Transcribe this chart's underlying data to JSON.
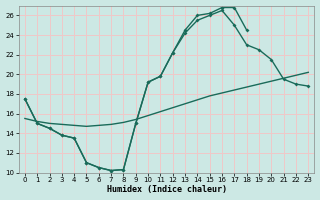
{
  "xlabel": "Humidex (Indice chaleur)",
  "bg_color": "#cce8e4",
  "grid_color": "#f0c8c8",
  "line_color": "#1a6b5a",
  "xlim": [
    -0.5,
    23.5
  ],
  "ylim": [
    10,
    27
  ],
  "yticks": [
    10,
    12,
    14,
    16,
    18,
    20,
    22,
    24,
    26
  ],
  "xticks": [
    0,
    1,
    2,
    3,
    4,
    5,
    6,
    7,
    8,
    9,
    10,
    11,
    12,
    13,
    14,
    15,
    16,
    17,
    18,
    19,
    20,
    21,
    22,
    23
  ],
  "curve_dip_x": [
    0,
    1,
    2,
    3,
    4,
    5,
    6,
    7,
    8,
    9,
    10,
    11,
    12,
    13,
    14,
    15,
    16,
    17,
    18
  ],
  "curve_dip_y": [
    17.5,
    15.0,
    14.5,
    13.8,
    13.5,
    11.0,
    10.5,
    10.2,
    10.3,
    15.0,
    19.2,
    19.8,
    22.2,
    24.5,
    26.0,
    26.2,
    26.8,
    26.8,
    24.5
  ],
  "curve_full_x": [
    0,
    1,
    2,
    3,
    4,
    5,
    6,
    7,
    8,
    9,
    10,
    11,
    12,
    13,
    14,
    15,
    16,
    17,
    18,
    19,
    20,
    21,
    22,
    23
  ],
  "curve_full_y": [
    17.5,
    15.0,
    14.5,
    13.8,
    13.5,
    11.0,
    10.5,
    10.2,
    10.3,
    15.0,
    19.2,
    19.8,
    22.2,
    24.2,
    25.5,
    26.0,
    26.5,
    25.0,
    23.0,
    22.5,
    21.5,
    19.5,
    19.0,
    18.8
  ],
  "curve_trend_x": [
    0,
    1,
    2,
    3,
    4,
    5,
    6,
    7,
    8,
    9,
    10,
    11,
    12,
    13,
    14,
    15,
    16,
    17,
    18,
    19,
    20,
    21,
    22,
    23
  ],
  "curve_trend_y": [
    15.5,
    15.2,
    15.0,
    14.9,
    14.8,
    14.7,
    14.8,
    14.9,
    15.1,
    15.4,
    15.8,
    16.2,
    16.6,
    17.0,
    17.4,
    17.8,
    18.1,
    18.4,
    18.7,
    19.0,
    19.3,
    19.6,
    19.9,
    20.2
  ]
}
